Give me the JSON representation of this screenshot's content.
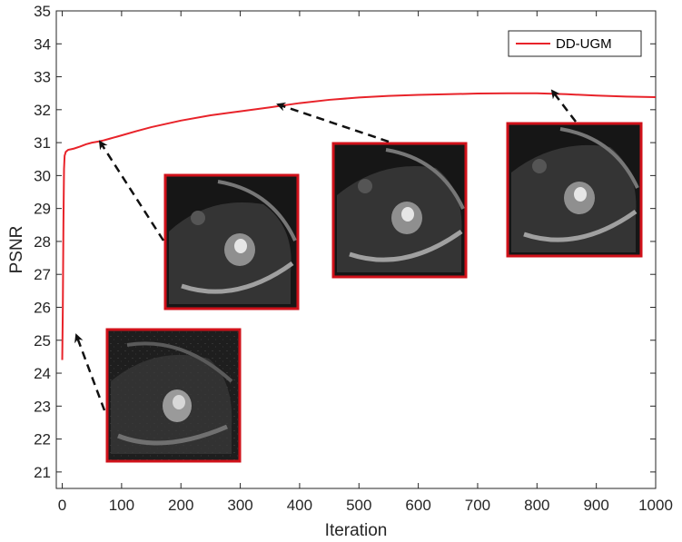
{
  "chart_data": {
    "type": "line",
    "title": "",
    "xlabel": "Iteration",
    "ylabel": "PSNR",
    "xlim": [
      -10,
      1000
    ],
    "ylim": [
      20.5,
      35
    ],
    "xticks": [
      0,
      100,
      200,
      300,
      400,
      500,
      600,
      700,
      800,
      900,
      1000
    ],
    "yticks": [
      21,
      22,
      23,
      24,
      25,
      26,
      27,
      28,
      29,
      30,
      31,
      32,
      33,
      34,
      35
    ],
    "grid": false,
    "legend_position": "top-right",
    "series": [
      {
        "name": "DD-UGM",
        "color": "#e8232a",
        "x": [
          0,
          1,
          2,
          3,
          4,
          6,
          8,
          10,
          15,
          20,
          30,
          40,
          50,
          60,
          70,
          80,
          100,
          125,
          150,
          175,
          200,
          250,
          300,
          350,
          400,
          450,
          500,
          550,
          600,
          650,
          700,
          750,
          800,
          850,
          900,
          950,
          1000
        ],
        "y": [
          24.4,
          26.0,
          28.5,
          30.2,
          30.6,
          30.72,
          30.75,
          30.78,
          30.8,
          30.82,
          30.88,
          30.95,
          31.0,
          31.03,
          31.07,
          31.12,
          31.22,
          31.35,
          31.47,
          31.57,
          31.67,
          31.83,
          31.95,
          32.07,
          32.2,
          32.3,
          32.37,
          32.42,
          32.45,
          32.47,
          32.49,
          32.5,
          32.5,
          32.47,
          32.43,
          32.4,
          32.38
        ]
      }
    ],
    "annotations": [
      {
        "description": "reconstructed MR image thumbnail",
        "arrow_to": {
          "x": 5,
          "y": 24.6
        }
      },
      {
        "description": "reconstructed MR image thumbnail",
        "arrow_to": {
          "x": 50,
          "y": 30.9
        }
      },
      {
        "description": "reconstructed MR image thumbnail",
        "arrow_to": {
          "x": 350,
          "y": 31.95
        }
      },
      {
        "description": "reconstructed MR image thumbnail",
        "arrow_to": {
          "x": 825,
          "y": 32.45
        }
      }
    ]
  }
}
